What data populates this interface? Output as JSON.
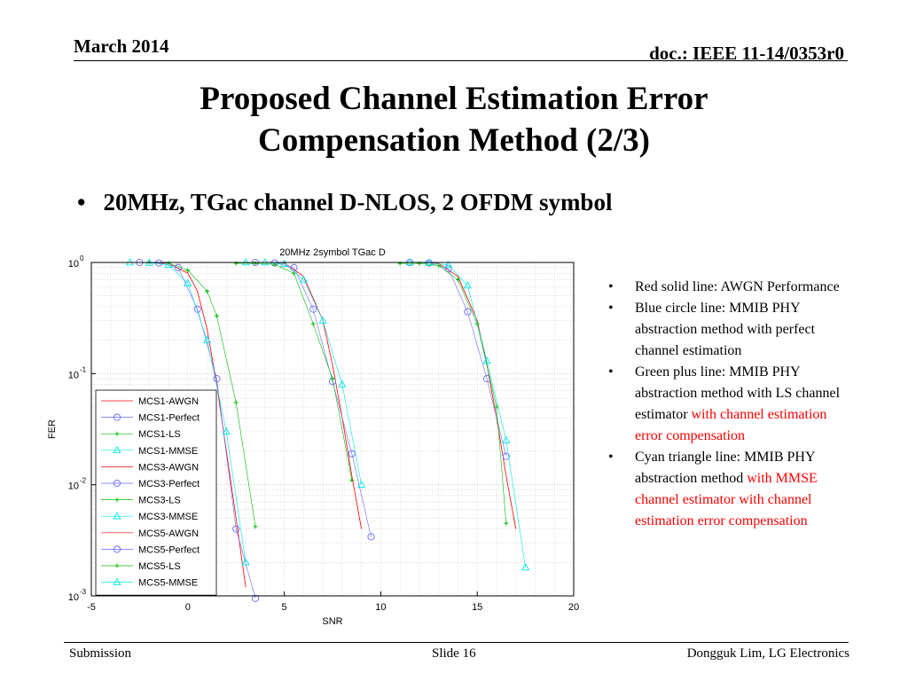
{
  "header": {
    "date": "March 2014",
    "doc": "doc.: IEEE 11-14/0353r0"
  },
  "slide": {
    "title_line1": "Proposed Channel Estimation Error",
    "title_line2": "Compensation Method (2/3)",
    "main_bullet": "20MHz, TGac channel D-NLOS, 2 OFDM symbol"
  },
  "notes": [
    {
      "plain": "Red solid line: AWGN Performance",
      "highlight": ""
    },
    {
      "plain": "Blue circle line: MMIB PHY abstraction method with perfect channel estimation",
      "highlight": ""
    },
    {
      "plain": "Green plus line: MMIB PHY abstraction method with LS channel estimator ",
      "highlight": "with channel estimation error compensation"
    },
    {
      "plain": "Cyan triangle line: MMIB PHY abstraction method ",
      "highlight": "with MMSE channel estimator with channel estimation error compensation"
    }
  ],
  "colors": {
    "awgn": "#ff0000",
    "perfect": "#6666ff",
    "ls": "#00bb00",
    "mmse": "#00e5e5",
    "highlight": "#ff0000"
  },
  "footer": {
    "left": "Submission",
    "center": "Slide 16",
    "right": "Dongguk Lim, LG Electronics"
  },
  "chart_data": {
    "type": "line",
    "title": "20MHz 2symbol TGac D",
    "xlabel": "SNR",
    "ylabel": "FER",
    "xlim": [
      -5,
      20
    ],
    "ylim": [
      0.001,
      1
    ],
    "yscale": "log",
    "grid": true,
    "legend_position": "bottom-left",
    "x_ticks": [
      "-5",
      "0",
      "5",
      "10",
      "15",
      "20"
    ],
    "y_ticks": [
      {
        "value": 1,
        "base": "10",
        "exp": "0"
      },
      {
        "value": 0.1,
        "base": "10",
        "exp": "-1"
      },
      {
        "value": 0.01,
        "base": "10",
        "exp": "-2"
      },
      {
        "value": 0.001,
        "base": "10",
        "exp": "-3"
      }
    ],
    "series": [
      {
        "name": "MCS1-AWGN",
        "style": "awgn",
        "x": [
          -3,
          -2,
          -1,
          0,
          0.5,
          1,
          1.5,
          2,
          2.5,
          3
        ],
        "y": [
          1,
          1,
          0.98,
          0.8,
          0.55,
          0.25,
          0.08,
          0.02,
          0.005,
          0.0012
        ]
      },
      {
        "name": "MCS1-Perfect",
        "style": "perfect",
        "x": [
          -2.5,
          -1.5,
          -0.5,
          0.5,
          1.5,
          2.5,
          3.5
        ],
        "y": [
          1,
          0.99,
          0.9,
          0.38,
          0.09,
          0.004,
          0.00095
        ]
      },
      {
        "name": "MCS1-LS",
        "style": "ls",
        "x": [
          -2,
          -1,
          0,
          1,
          1.5,
          2.5,
          3.5
        ],
        "y": [
          1,
          0.99,
          0.85,
          0.55,
          0.33,
          0.055,
          0.0042
        ]
      },
      {
        "name": "MCS1-MMSE",
        "style": "mmse",
        "x": [
          -3,
          -2,
          -1,
          0,
          1,
          2,
          3
        ],
        "y": [
          1,
          0.99,
          0.95,
          0.65,
          0.2,
          0.03,
          0.002
        ]
      },
      {
        "name": "MCS3-AWGN",
        "style": "awgn",
        "x": [
          3,
          4,
          5,
          6,
          7,
          7.5,
          8,
          8.5,
          9
        ],
        "y": [
          1,
          1,
          0.99,
          0.75,
          0.3,
          0.12,
          0.04,
          0.012,
          0.004
        ]
      },
      {
        "name": "MCS3-Perfect",
        "style": "perfect",
        "x": [
          3.5,
          4.5,
          5.5,
          6.5,
          7.5,
          8.5,
          9.5
        ],
        "y": [
          1,
          0.99,
          0.9,
          0.38,
          0.085,
          0.019,
          0.0034
        ]
      },
      {
        "name": "MCS3-LS",
        "style": "ls",
        "x": [
          2.5,
          3.5,
          4.5,
          5.5,
          6.5,
          7.5,
          8.5
        ],
        "y": [
          0.98,
          0.98,
          0.96,
          0.8,
          0.28,
          0.09,
          0.011
        ]
      },
      {
        "name": "MCS3-MMSE",
        "style": "mmse",
        "x": [
          3,
          4,
          5,
          6,
          7,
          8,
          9
        ],
        "y": [
          1,
          1,
          0.97,
          0.7,
          0.3,
          0.08,
          0.01
        ]
      },
      {
        "name": "MCS5-AWGN",
        "style": "awgn",
        "x": [
          11,
          12,
          13,
          14,
          15,
          15.5,
          16,
          16.5,
          17
        ],
        "y": [
          1,
          1,
          0.98,
          0.75,
          0.3,
          0.12,
          0.04,
          0.012,
          0.004
        ]
      },
      {
        "name": "MCS5-Perfect",
        "style": "perfect",
        "x": [
          11.5,
          12.5,
          13.5,
          14.5,
          15.5,
          16.5
        ],
        "y": [
          1,
          0.99,
          0.88,
          0.36,
          0.09,
          0.018
        ]
      },
      {
        "name": "MCS5-LS",
        "style": "ls",
        "x": [
          11,
          12,
          13,
          14,
          15,
          16,
          16.5
        ],
        "y": [
          0.98,
          0.98,
          0.94,
          0.7,
          0.28,
          0.05,
          0.0045
        ]
      },
      {
        "name": "MCS5-MMSE",
        "style": "mmse",
        "x": [
          11.5,
          12.5,
          13.5,
          14.5,
          15.5,
          16.5,
          17.5
        ],
        "y": [
          1,
          0.99,
          0.95,
          0.62,
          0.13,
          0.025,
          0.0018
        ]
      }
    ]
  }
}
